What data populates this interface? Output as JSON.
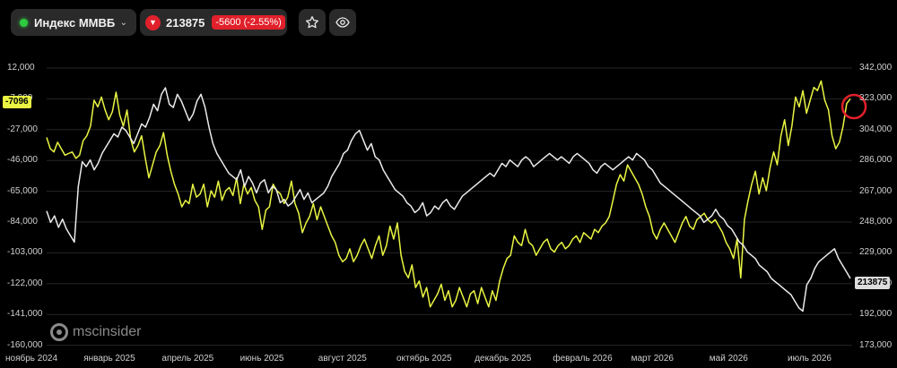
{
  "toolbar": {
    "instrument_name": "Индекс ММВБ",
    "chevron": "⌄",
    "status_color": "#2ecc40",
    "direction_icon": "▼",
    "last_price": "213875",
    "change": "-5600 (-2.55%)",
    "change_color": "#e0202a",
    "star_icon": "☆",
    "eye_icon": "◉"
  },
  "watermark": {
    "prefix": "msc",
    "suffix": "insider"
  },
  "chart_data": {
    "type": "line",
    "x_ticks": [
      "ноябрь 2024",
      "январь 2025",
      "апрель 2025",
      "июнь 2025",
      "август 2025",
      "октябрь 2025",
      "декабрь 2025",
      "февраль 2026",
      "март 2026",
      "май 2026",
      "июль 2026"
    ],
    "y_left_ticks": [
      "12,000",
      "-7,000",
      "-27,000",
      "-46,000",
      "-65,000",
      "-84,000",
      "-103,000",
      "-122,000",
      "-141,000",
      "-160,000"
    ],
    "y_right_ticks": [
      "342,000",
      "323,000",
      "304,000",
      "286,000",
      "267,000",
      "248,000",
      "229,000",
      "210,000",
      "192,000",
      "173,000"
    ],
    "left_range": [
      -160000,
      12000
    ],
    "right_range": [
      173000,
      342000
    ],
    "grid": true,
    "series": [
      {
        "axis": "left",
        "color": "#e9f542",
        "last_label": "-7096",
        "values": [
          -31000,
          -38000,
          -40000,
          -34000,
          -38000,
          -42000,
          -41000,
          -40000,
          -44000,
          -42000,
          -33000,
          -30000,
          -24000,
          -8000,
          -12000,
          -6000,
          -14000,
          -20000,
          -15000,
          -3000,
          -17000,
          -24000,
          -14000,
          -32000,
          -40000,
          -36000,
          -30000,
          -44000,
          -56000,
          -48000,
          -40000,
          -36000,
          -28000,
          -42000,
          -52000,
          -60000,
          -66000,
          -74000,
          -70000,
          -72000,
          -60000,
          -68000,
          -66000,
          -60000,
          -74000,
          -64000,
          -68000,
          -58000,
          -70000,
          -64000,
          -62000,
          -67000,
          -56000,
          -72000,
          -60000,
          -66000,
          -62000,
          -70000,
          -74000,
          -88000,
          -76000,
          -74000,
          -60000,
          -64000,
          -66000,
          -72000,
          -68000,
          -58000,
          -72000,
          -78000,
          -90000,
          -84000,
          -80000,
          -72000,
          -82000,
          -74000,
          -80000,
          -86000,
          -92000,
          -96000,
          -104000,
          -108000,
          -106000,
          -100000,
          -108000,
          -104000,
          -98000,
          -94000,
          -100000,
          -106000,
          -98000,
          -92000,
          -104000,
          -98000,
          -86000,
          -94000,
          -84000,
          -104000,
          -114000,
          -118000,
          -110000,
          -124000,
          -120000,
          -130000,
          -124000,
          -136000,
          -132000,
          -128000,
          -122000,
          -132000,
          -126000,
          -136000,
          -132000,
          -124000,
          -130000,
          -136000,
          -128000,
          -126000,
          -134000,
          -124000,
          -130000,
          -136000,
          -126000,
          -132000,
          -120000,
          -112000,
          -106000,
          -104000,
          -92000,
          -96000,
          -98000,
          -88000,
          -96000,
          -98000,
          -104000,
          -100000,
          -96000,
          -94000,
          -100000,
          -102000,
          -98000,
          -96000,
          -100000,
          -98000,
          -94000,
          -92000,
          -96000,
          -90000,
          -92000,
          -94000,
          -88000,
          -90000,
          -86000,
          -84000,
          -80000,
          -70000,
          -60000,
          -54000,
          -58000,
          -48000,
          -52000,
          -56000,
          -60000,
          -66000,
          -74000,
          -80000,
          -90000,
          -94000,
          -88000,
          -84000,
          -88000,
          -92000,
          -96000,
          -90000,
          -84000,
          -80000,
          -86000,
          -88000,
          -82000,
          -80000,
          -78000,
          -82000,
          -84000,
          -82000,
          -86000,
          -90000,
          -96000,
          -100000,
          -106000,
          -94000,
          -118000,
          -82000,
          -70000,
          -60000,
          -52000,
          -66000,
          -56000,
          -64000,
          -50000,
          -40000,
          -48000,
          -30000,
          -20000,
          -36000,
          -24000,
          -6000,
          -12000,
          -2000,
          -16000,
          -8000,
          0,
          -2000,
          4000,
          -8000,
          -14000,
          -30000,
          -38000,
          -34000,
          -24000,
          -10000,
          -7096
        ]
      },
      {
        "axis": "right",
        "color": "#ebebeb",
        "last_label": "213875",
        "values": [
          255000,
          248000,
          252000,
          245000,
          250000,
          244000,
          240000,
          236000,
          270000,
          285000,
          282000,
          286000,
          280000,
          284000,
          290000,
          294000,
          298000,
          302000,
          300000,
          306000,
          304000,
          300000,
          296000,
          302000,
          308000,
          306000,
          312000,
          320000,
          316000,
          326000,
          330000,
          320000,
          318000,
          326000,
          322000,
          316000,
          310000,
          314000,
          322000,
          326000,
          318000,
          306000,
          296000,
          290000,
          286000,
          282000,
          278000,
          276000,
          274000,
          280000,
          270000,
          276000,
          272000,
          266000,
          272000,
          274000,
          266000,
          270000,
          268000,
          260000,
          262000,
          258000,
          260000,
          264000,
          268000,
          262000,
          266000,
          260000,
          262000,
          264000,
          266000,
          270000,
          276000,
          280000,
          284000,
          290000,
          292000,
          298000,
          302000,
          304000,
          298000,
          292000,
          296000,
          288000,
          286000,
          280000,
          276000,
          272000,
          268000,
          266000,
          264000,
          260000,
          258000,
          254000,
          256000,
          260000,
          252000,
          254000,
          258000,
          256000,
          260000,
          262000,
          258000,
          256000,
          260000,
          264000,
          266000,
          268000,
          270000,
          272000,
          274000,
          276000,
          278000,
          276000,
          280000,
          284000,
          282000,
          286000,
          284000,
          282000,
          286000,
          288000,
          286000,
          282000,
          284000,
          286000,
          288000,
          290000,
          288000,
          286000,
          288000,
          286000,
          284000,
          288000,
          290000,
          288000,
          286000,
          284000,
          280000,
          278000,
          282000,
          284000,
          282000,
          280000,
          282000,
          284000,
          286000,
          288000,
          286000,
          290000,
          288000,
          286000,
          282000,
          280000,
          276000,
          272000,
          270000,
          268000,
          266000,
          264000,
          262000,
          260000,
          258000,
          256000,
          254000,
          252000,
          248000,
          250000,
          252000,
          256000,
          252000,
          250000,
          246000,
          244000,
          240000,
          236000,
          234000,
          230000,
          228000,
          226000,
          222000,
          220000,
          218000,
          214000,
          212000,
          210000,
          208000,
          206000,
          204000,
          200000,
          196000,
          194000,
          210000,
          214000,
          220000,
          224000,
          226000,
          228000,
          230000,
          232000,
          226000,
          222000,
          218000,
          213875
        ]
      }
    ]
  }
}
